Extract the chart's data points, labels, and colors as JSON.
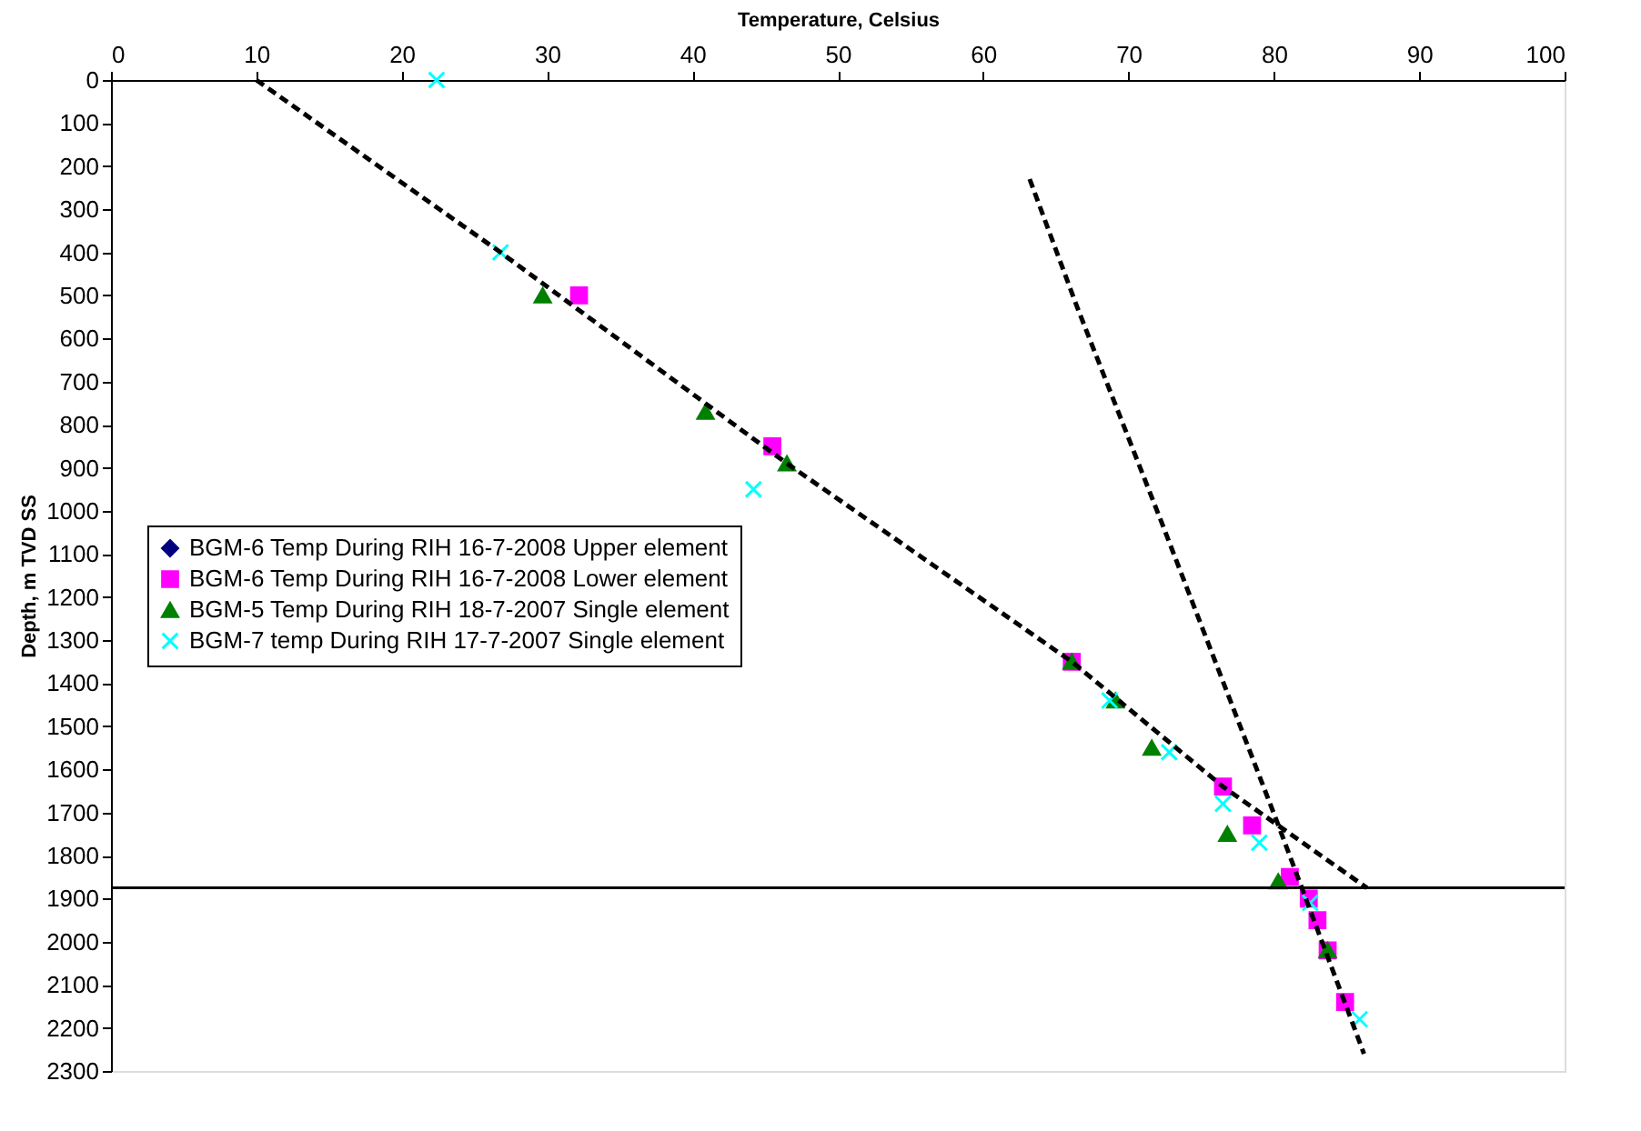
{
  "chart_data": {
    "type": "scatter",
    "xlabel": "Temperature, Celsius",
    "ylabel": "Depth, m TVD SS",
    "xlim": [
      0,
      100
    ],
    "xticks": [
      0,
      10,
      20,
      30,
      40,
      50,
      60,
      70,
      80,
      90,
      100
    ],
    "ylim": [
      2300,
      0
    ],
    "yticks": [
      0,
      100,
      200,
      300,
      400,
      500,
      600,
      700,
      800,
      900,
      1000,
      1100,
      1200,
      1300,
      1400,
      1500,
      1600,
      1700,
      1800,
      1900,
      2000,
      2100,
      2200,
      2300
    ],
    "grid": false,
    "legend": "left",
    "series": [
      {
        "name": "BGM-6 Temp During RIH 16-7-2008 Upper element",
        "color": "#000080",
        "marker": "diamond"
      },
      {
        "name": "BGM-6 Temp During RIH 16-7-2008 Lower element",
        "color": "#ff00ff",
        "marker": "square",
        "x": [
          32.2,
          45.5,
          66.1,
          76.5,
          78.5,
          81.1,
          82.4,
          83.0,
          83.7,
          84.9
        ],
        "values": [
          500,
          850,
          1350,
          1640,
          1730,
          1850,
          1900,
          1950,
          2020,
          2140
        ]
      },
      {
        "name": "BGM-5 Temp During RIH 18-7-2007 Single element",
        "color": "#008000",
        "marker": "triangle",
        "x": [
          29.7,
          40.9,
          46.5,
          66.1,
          69.1,
          71.6,
          76.8,
          80.3,
          83.7
        ],
        "values": [
          500,
          770,
          890,
          1350,
          1440,
          1550,
          1750,
          1860,
          2020
        ]
      },
      {
        "name": "BGM-7 temp During RIH 17-7-2007 Single element",
        "color": "#00ffff",
        "marker": "cross",
        "x": [
          22.4,
          26.8,
          44.2,
          68.7,
          72.8,
          76.5,
          79.0,
          82.5,
          85.9
        ],
        "values": [
          0,
          400,
          950,
          1440,
          1560,
          1680,
          1770,
          1910,
          2180
        ]
      },
      {
        "type": "line",
        "color": "#000000",
        "line_style": "dashed",
        "x": [
          10,
          26.8,
          46.5,
          66.1,
          76.5,
          86.4
        ],
        "values": [
          0,
          400,
          890,
          1350,
          1640,
          1875
        ]
      },
      {
        "type": "line",
        "color": "#000000",
        "line_style": "dashed",
        "x": [
          63.2,
          66.5,
          72.2,
          80.2,
          86.2
        ],
        "values": [
          230,
          530,
          1020,
          1720,
          2260
        ]
      }
    ],
    "ref_lines": [
      {
        "axis": "y",
        "value": 1875,
        "color": "#000000"
      }
    ]
  }
}
